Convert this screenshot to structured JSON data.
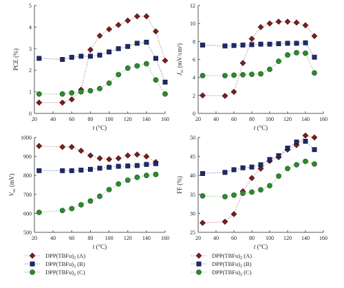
{
  "colors": {
    "A": "#7a1f1f",
    "B": "#1f2a6b",
    "C": "#2f8a2f",
    "A_line": "#c47a7a",
    "B_line": "#6e79b0",
    "C_line": "#7dba6e"
  },
  "legend_series": [
    "A",
    "B",
    "C"
  ],
  "legend": {
    "left": [
      {
        "label": "DPP(TBFu)",
        "sub": "2",
        "suffix": " (A)",
        "series": "A"
      },
      {
        "label": "DPP(TBFu)",
        "sub": "2",
        "suffix": " (B)",
        "series": "B"
      },
      {
        "label": "DPP(TBFu)",
        "sub": "2",
        "suffix": " (C)",
        "series": "C"
      }
    ],
    "right": [
      {
        "label": "DPP(TBFu)",
        "sub": "2",
        "suffix": " (A)",
        "series": "A"
      },
      {
        "label": "DPP(TBFu)",
        "sub": "2",
        "suffix": " (B)",
        "series": "B"
      },
      {
        "label": "DPP(TBFu)",
        "sub": "2",
        "suffix": " (C)",
        "series": "C"
      }
    ]
  },
  "chart_data": [
    {
      "id": "pce",
      "type": "scatter",
      "ylabel": "PCE (%)",
      "xlabel": "t (°C)",
      "xlim": [
        20,
        160
      ],
      "ylim": [
        0,
        5
      ],
      "xticks": [
        20,
        40,
        60,
        80,
        100,
        120,
        140,
        160
      ],
      "yticks": [
        0,
        1,
        2,
        3,
        4,
        5
      ],
      "series": [
        {
          "key": "A",
          "x": [
            25,
            50,
            60,
            70,
            80,
            90,
            100,
            110,
            120,
            130,
            140,
            150,
            160
          ],
          "y": [
            0.5,
            0.5,
            0.65,
            1.1,
            2.95,
            3.6,
            3.9,
            4.1,
            4.3,
            4.5,
            4.5,
            3.8,
            2.45
          ]
        },
        {
          "key": "B",
          "x": [
            25,
            50,
            60,
            70,
            80,
            90,
            100,
            110,
            120,
            130,
            140,
            150,
            160
          ],
          "y": [
            2.55,
            2.5,
            2.6,
            2.65,
            2.65,
            2.7,
            2.85,
            3.0,
            3.1,
            3.25,
            3.3,
            2.55,
            1.45
          ]
        },
        {
          "key": "C",
          "x": [
            25,
            50,
            60,
            70,
            80,
            90,
            100,
            110,
            120,
            130,
            140,
            150,
            160
          ],
          "y": [
            0.9,
            0.9,
            0.95,
            1.0,
            1.05,
            1.15,
            1.4,
            1.8,
            2.1,
            2.2,
            2.3,
            1.55,
            0.9
          ]
        }
      ]
    },
    {
      "id": "jsc",
      "type": "scatter",
      "ylabel": "J",
      "ylabel_sub": "sc",
      "ylabel_unit": " (mV/cm²)",
      "xlabel": "t (°C)",
      "xlim": [
        20,
        160
      ],
      "ylim": [
        0,
        12
      ],
      "xticks": [
        20,
        40,
        60,
        80,
        100,
        120,
        140,
        160
      ],
      "yticks": [
        0,
        2,
        4,
        6,
        8,
        10,
        12
      ],
      "series": [
        {
          "key": "A",
          "x": [
            25,
            50,
            60,
            70,
            80,
            90,
            100,
            110,
            120,
            130,
            140,
            150
          ],
          "y": [
            2.0,
            1.95,
            2.4,
            5.6,
            8.3,
            9.6,
            10.0,
            10.2,
            10.2,
            10.1,
            9.8,
            8.6
          ]
        },
        {
          "key": "B",
          "x": [
            25,
            50,
            60,
            70,
            80,
            90,
            100,
            110,
            120,
            130,
            140,
            150
          ],
          "y": [
            7.6,
            7.5,
            7.55,
            7.6,
            7.65,
            7.7,
            7.7,
            7.75,
            7.8,
            7.8,
            7.85,
            6.25
          ]
        },
        {
          "key": "C",
          "x": [
            25,
            50,
            60,
            70,
            80,
            90,
            100,
            110,
            120,
            130,
            140,
            150
          ],
          "y": [
            4.2,
            4.2,
            4.25,
            4.3,
            4.35,
            4.4,
            4.9,
            5.8,
            6.5,
            6.75,
            6.7,
            4.5
          ]
        }
      ]
    },
    {
      "id": "voc",
      "type": "scatter",
      "ylabel": "V",
      "ylabel_sub": "oc",
      "ylabel_unit": " (mV)",
      "xlabel": "t (°C)",
      "xlim": [
        20,
        160
      ],
      "ylim": [
        500,
        1000
      ],
      "xticks": [
        20,
        40,
        60,
        80,
        100,
        120,
        140,
        160
      ],
      "yticks": [
        500,
        600,
        700,
        800,
        900,
        1000
      ],
      "series": [
        {
          "key": "A",
          "x": [
            25,
            50,
            60,
            70,
            80,
            90,
            100,
            110,
            120,
            130,
            140,
            150
          ],
          "y": [
            955,
            950,
            950,
            930,
            905,
            890,
            885,
            890,
            905,
            910,
            900,
            870
          ]
        },
        {
          "key": "B",
          "x": [
            25,
            50,
            60,
            70,
            80,
            90,
            100,
            110,
            120,
            130,
            140,
            150
          ],
          "y": [
            825,
            825,
            825,
            828,
            832,
            838,
            843,
            848,
            850,
            852,
            858,
            862
          ]
        },
        {
          "key": "C",
          "x": [
            25,
            50,
            60,
            70,
            80,
            90,
            100,
            110,
            120,
            130,
            140,
            150
          ],
          "y": [
            605,
            615,
            625,
            645,
            665,
            690,
            725,
            755,
            775,
            790,
            800,
            805
          ]
        }
      ]
    },
    {
      "id": "ff",
      "type": "scatter",
      "ylabel": "FF (%)",
      "xlabel": "t (°C)",
      "xlim": [
        20,
        160
      ],
      "ylim": [
        25,
        50
      ],
      "xticks": [
        20,
        40,
        60,
        80,
        100,
        120,
        140,
        160
      ],
      "yticks": [
        25,
        30,
        35,
        40,
        45,
        50
      ],
      "series": [
        {
          "key": "A",
          "x": [
            25,
            50,
            60,
            70,
            80,
            90,
            100,
            110,
            120,
            130,
            140,
            150
          ],
          "y": [
            27.5,
            27.8,
            29.8,
            35.8,
            39.3,
            41.8,
            43.8,
            44.8,
            46.8,
            48.0,
            50.5,
            50.0
          ]
        },
        {
          "key": "B",
          "x": [
            25,
            50,
            60,
            70,
            80,
            90,
            100,
            110,
            120,
            130,
            140,
            150
          ],
          "y": [
            40.5,
            40.8,
            41.5,
            42.0,
            42.2,
            42.8,
            44.2,
            45.2,
            47.2,
            48.8,
            49.0,
            46.8
          ]
        },
        {
          "key": "C",
          "x": [
            25,
            50,
            60,
            70,
            80,
            90,
            100,
            110,
            120,
            130,
            140,
            150
          ],
          "y": [
            34.6,
            34.4,
            34.8,
            35.3,
            35.6,
            36.2,
            37.3,
            39.8,
            41.8,
            42.8,
            43.7,
            43.0
          ]
        }
      ]
    }
  ]
}
